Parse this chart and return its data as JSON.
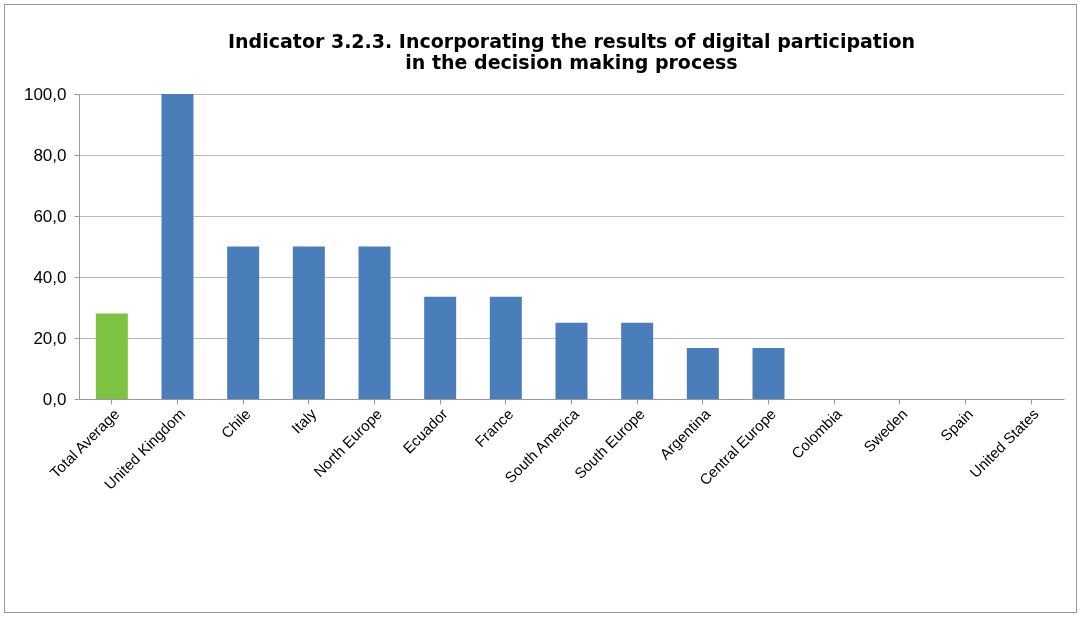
{
  "chart_data": {
    "type": "bar",
    "title": "Indicator 3.2.3. Incorporating the results of digital participation\nin the decision making process",
    "categories": [
      "Total Average",
      "United Kingdom",
      "Chile",
      "Italy",
      "North Europe",
      "Ecuador",
      "France",
      "South America",
      "South Europe",
      "Argentina",
      "Central Europe",
      "Colombia",
      "Sweden",
      "Spain",
      "United States"
    ],
    "values": [
      28,
      100,
      50,
      50,
      50,
      33.5,
      33.5,
      25,
      25,
      16.7,
      16.7,
      0,
      0,
      0,
      0
    ],
    "colors": [
      "#7dc242",
      "#4a7ebb",
      "#4a7ebb",
      "#4a7ebb",
      "#4a7ebb",
      "#4a7ebb",
      "#4a7ebb",
      "#4a7ebb",
      "#4a7ebb",
      "#4a7ebb",
      "#4a7ebb",
      "#4a7ebb",
      "#4a7ebb",
      "#4a7ebb",
      "#4a7ebb"
    ],
    "ylim": [
      0,
      100
    ],
    "yticks": [
      {
        "value": 0,
        "label": "0,0"
      },
      {
        "value": 20,
        "label": "20,0"
      },
      {
        "value": 40,
        "label": "40,0"
      },
      {
        "value": 60,
        "label": "60,0"
      },
      {
        "value": 80,
        "label": "80,0"
      },
      {
        "value": 100,
        "label": "100,0"
      }
    ],
    "grid": "y"
  }
}
